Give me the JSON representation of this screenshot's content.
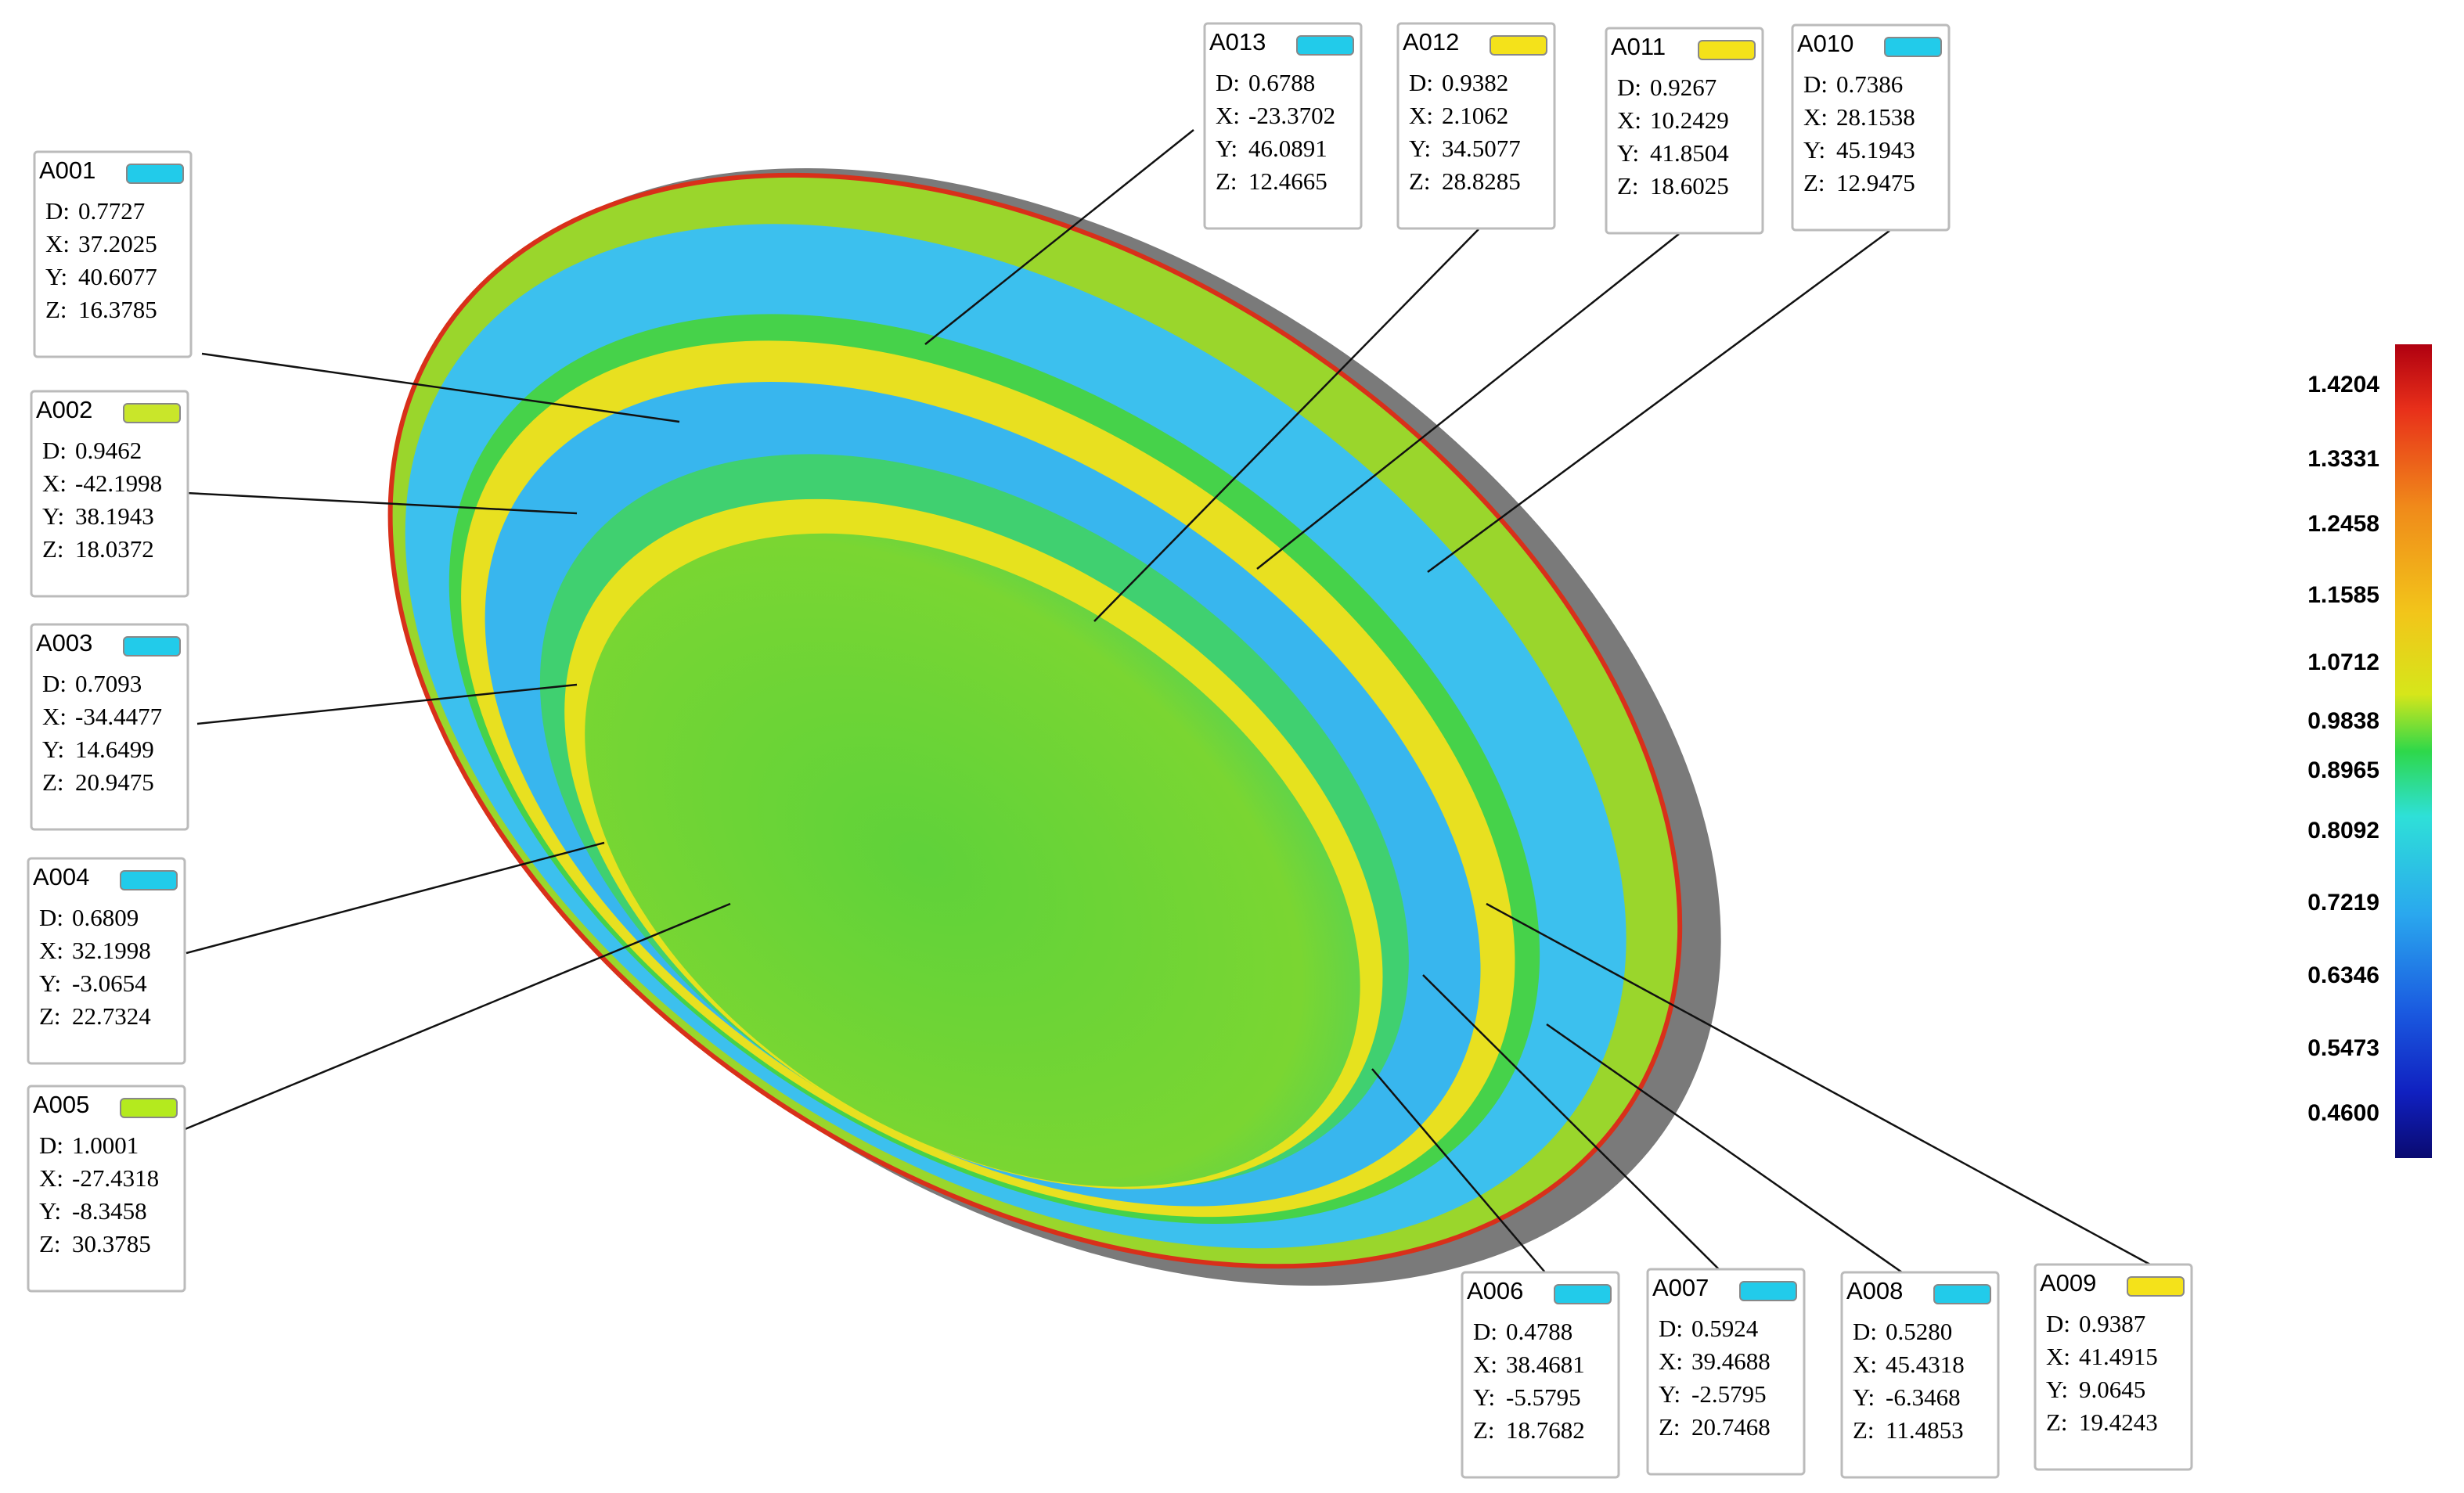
{
  "annotations": [
    {
      "id": "A001",
      "color": "#22cbea",
      "D": "0.7727",
      "X": "37.2025",
      "Y": "40.6077",
      "Z": "16.3785"
    },
    {
      "id": "A002",
      "color": "#c9e62a",
      "D": "0.9462",
      "X": "-42.1998",
      "Y": "38.1943",
      "Z": "18.0372"
    },
    {
      "id": "A003",
      "color": "#22cbea",
      "D": "0.7093",
      "X": "-34.4477",
      "Y": "14.6499",
      "Z": "20.9475"
    },
    {
      "id": "A004",
      "color": "#22cbea",
      "D": "0.6809",
      "X": "32.1998",
      "Y": "-3.0654",
      "Z": "22.7324"
    },
    {
      "id": "A005",
      "color": "#b4ea1e",
      "D": "1.0001",
      "X": "-27.4318",
      "Y": "-8.3458",
      "Z": "30.3785"
    },
    {
      "id": "A006",
      "color": "#22cbea",
      "D": "0.4788",
      "X": "38.4681",
      "Y": "-5.5795",
      "Z": "18.7682"
    },
    {
      "id": "A007",
      "color": "#22cbea",
      "D": "0.5924",
      "X": "39.4688",
      "Y": "-2.5795",
      "Z": "20.7468"
    },
    {
      "id": "A008",
      "color": "#22cbea",
      "D": "0.5280",
      "X": "45.4318",
      "Y": "-6.3468",
      "Z": "11.4853"
    },
    {
      "id": "A009",
      "color": "#f4e21a",
      "D": "0.9387",
      "X": "41.4915",
      "Y": "9.0645",
      "Z": "19.4243"
    },
    {
      "id": "A010",
      "color": "#22cbea",
      "D": "0.7386",
      "X": "28.1538",
      "Y": "45.1943",
      "Z": "12.9475"
    },
    {
      "id": "A011",
      "color": "#f4e21a",
      "D": "0.9267",
      "X": "10.2429",
      "Y": "41.8504",
      "Z": "18.6025"
    },
    {
      "id": "A012",
      "color": "#f4e21a",
      "D": "0.9382",
      "X": "2.1062",
      "Y": "34.5077",
      "Z": "28.8285"
    },
    {
      "id": "A013",
      "color": "#22cbea",
      "D": "0.6788",
      "X": "-23.3702",
      "Y": "46.0891",
      "Z": "12.4665"
    }
  ],
  "field_labels": {
    "D": "D:",
    "X": "X:",
    "Y": "Y:",
    "Z": "Z:"
  },
  "color_scale": {
    "ticks": [
      "1.4204",
      "1.3331",
      "1.2458",
      "1.1585",
      "1.0712",
      "0.9838",
      "0.8965",
      "0.8092",
      "0.7219",
      "0.6346",
      "0.5473",
      "0.4600"
    ]
  }
}
